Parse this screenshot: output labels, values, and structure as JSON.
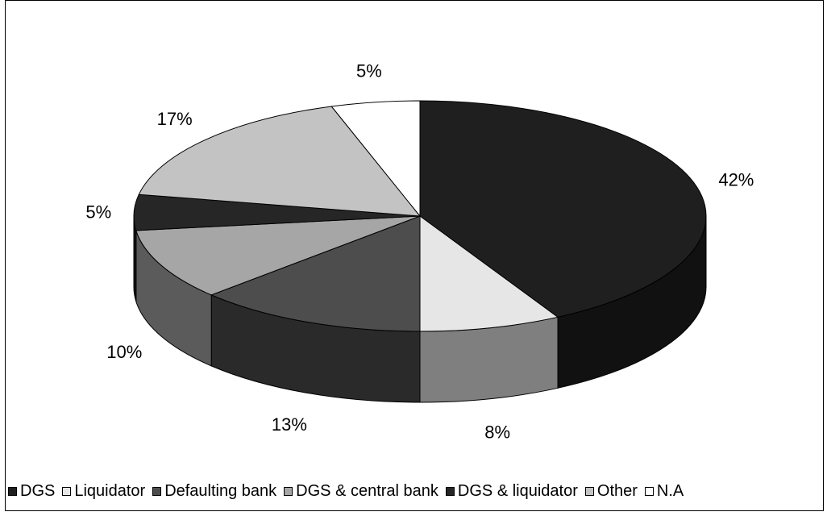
{
  "chart_data": {
    "type": "pie",
    "three_d": true,
    "title": "",
    "legend_position": "bottom",
    "slices": [
      {
        "label": "DGS",
        "value": 42,
        "value_label": "42%",
        "color": "#1f1f1f"
      },
      {
        "label": "Liquidator",
        "value": 8,
        "value_label": "8%",
        "color": "#e6e6e6"
      },
      {
        "label": "Defaulting bank",
        "value": 13,
        "value_label": "13%",
        "color": "#4d4d4d"
      },
      {
        "label": "DGS & central bank",
        "value": 10,
        "value_label": "10%",
        "color": "#a6a6a6"
      },
      {
        "label": "DGS & liquidator",
        "value": 5,
        "value_label": "5%",
        "color": "#262626"
      },
      {
        "label": "Other",
        "value": 17,
        "value_label": "17%",
        "color": "#c3c3c3"
      },
      {
        "label": "N.A",
        "value": 5,
        "value_label": "5%",
        "color": "#ffffff"
      }
    ]
  }
}
